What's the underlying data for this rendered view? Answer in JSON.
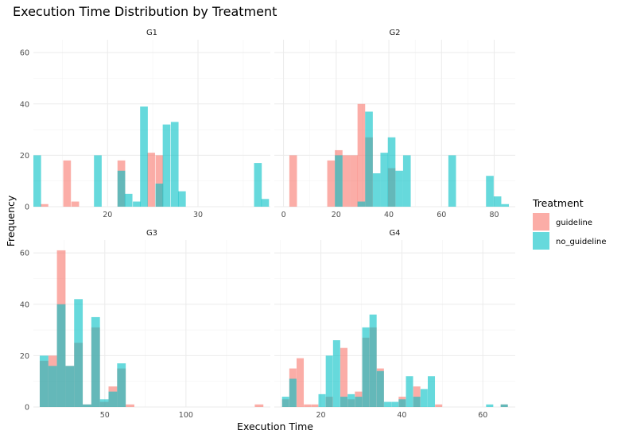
{
  "chart_data": {
    "type": "histogram",
    "title": "Execution Time Distribution by Treatment",
    "xlabel": "Execution Time",
    "ylabel": "Frequency",
    "legend": {
      "title": "Treatment",
      "position": "right",
      "entries": [
        {
          "name": "guideline",
          "color": "#F8766D"
        },
        {
          "name": "no_guideline",
          "color": "#00BFC4"
        }
      ]
    },
    "ylim": [
      0,
      65
    ],
    "yticks": [
      0,
      20,
      40,
      60
    ],
    "grid": true,
    "facets": [
      {
        "label": "G1",
        "xlim": [
          11.8,
          38.0
        ],
        "xticks": [
          20,
          30
        ],
        "bin_width": 0.85,
        "series": [
          {
            "name": "guideline",
            "bins": [
              [
                12.6,
                1
              ],
              [
                15.1,
                18
              ],
              [
                16.0,
                2
              ],
              [
                21.1,
                18
              ],
              [
                24.4,
                21
              ],
              [
                25.3,
                20
              ]
            ]
          },
          {
            "name": "no_guideline",
            "bins": [
              [
                11.8,
                20
              ],
              [
                18.5,
                20
              ],
              [
                21.1,
                14
              ],
              [
                21.9,
                5
              ],
              [
                22.8,
                2
              ],
              [
                23.6,
                39
              ],
              [
                25.3,
                9
              ],
              [
                26.1,
                32
              ],
              [
                27.0,
                33
              ],
              [
                27.8,
                6
              ],
              [
                36.2,
                17
              ],
              [
                37.0,
                3
              ]
            ]
          }
        ]
      },
      {
        "label": "G2",
        "xlim": [
          -3.5,
          88.0
        ],
        "xticks": [
          0,
          20,
          40,
          60,
          80
        ],
        "bin_width": 2.9,
        "series": [
          {
            "name": "guideline",
            "bins": [
              [
                2.2,
                20
              ],
              [
                16.6,
                18
              ],
              [
                19.5,
                22
              ],
              [
                22.4,
                20
              ],
              [
                25.3,
                20
              ],
              [
                28.1,
                40
              ],
              [
                31.0,
                27
              ],
              [
                39.6,
                15
              ]
            ]
          },
          {
            "name": "no_guideline",
            "bins": [
              [
                19.5,
                20
              ],
              [
                28.1,
                2
              ],
              [
                31.0,
                37
              ],
              [
                33.9,
                13
              ],
              [
                36.8,
                21
              ],
              [
                39.6,
                27
              ],
              [
                42.5,
                14
              ],
              [
                45.4,
                20
              ],
              [
                62.6,
                20
              ],
              [
                76.9,
                12
              ],
              [
                79.8,
                4
              ],
              [
                82.7,
                1
              ]
            ]
          }
        ]
      },
      {
        "label": "G3",
        "xlim": [
          6.0,
          152.0
        ],
        "xticks": [
          50,
          100
        ],
        "bin_width": 5.3,
        "series": [
          {
            "name": "guideline",
            "bins": [
              [
                9.9,
                18
              ],
              [
                15.2,
                20
              ],
              [
                20.5,
                61
              ],
              [
                25.8,
                16
              ],
              [
                31.1,
                25
              ],
              [
                36.4,
                1
              ],
              [
                41.7,
                31
              ],
              [
                47.0,
                2
              ],
              [
                52.3,
                8
              ],
              [
                57.6,
                15
              ],
              [
                62.9,
                1
              ],
              [
                142.4,
                1
              ]
            ]
          },
          {
            "name": "no_guideline",
            "bins": [
              [
                9.9,
                20
              ],
              [
                15.2,
                16
              ],
              [
                20.5,
                40
              ],
              [
                25.8,
                16
              ],
              [
                31.1,
                42
              ],
              [
                36.4,
                1
              ],
              [
                41.7,
                35
              ],
              [
                47.0,
                3
              ],
              [
                52.3,
                6
              ],
              [
                57.6,
                17
              ]
            ]
          }
        ]
      },
      {
        "label": "G4",
        "xlim": [
          8.5,
          68.0
        ],
        "xticks": [
          20,
          40,
          60
        ],
        "bin_width": 1.77,
        "series": [
          {
            "name": "guideline",
            "bins": [
              [
                10.4,
                3
              ],
              [
                12.2,
                15
              ],
              [
                14.0,
                19
              ],
              [
                15.8,
                1
              ],
              [
                17.6,
                1
              ],
              [
                21.2,
                4
              ],
              [
                24.8,
                23
              ],
              [
                26.6,
                3
              ],
              [
                28.4,
                6
              ],
              [
                30.2,
                27
              ],
              [
                32.0,
                31
              ],
              [
                33.8,
                15
              ],
              [
                39.2,
                4
              ],
              [
                42.8,
                8
              ],
              [
                48.2,
                1
              ],
              [
                64.4,
                1
              ]
            ]
          },
          {
            "name": "no_guideline",
            "bins": [
              [
                10.4,
                4
              ],
              [
                12.2,
                11
              ],
              [
                19.4,
                5
              ],
              [
                21.2,
                20
              ],
              [
                23.0,
                26
              ],
              [
                24.8,
                4
              ],
              [
                26.6,
                5
              ],
              [
                28.4,
                4
              ],
              [
                30.2,
                31
              ],
              [
                32.0,
                36
              ],
              [
                33.8,
                14
              ],
              [
                35.6,
                2
              ],
              [
                37.4,
                2
              ],
              [
                39.2,
                3
              ],
              [
                41.0,
                12
              ],
              [
                42.8,
                4
              ],
              [
                44.6,
                7
              ],
              [
                46.4,
                12
              ],
              [
                60.8,
                1
              ],
              [
                64.4,
                1
              ]
            ]
          }
        ]
      }
    ]
  }
}
